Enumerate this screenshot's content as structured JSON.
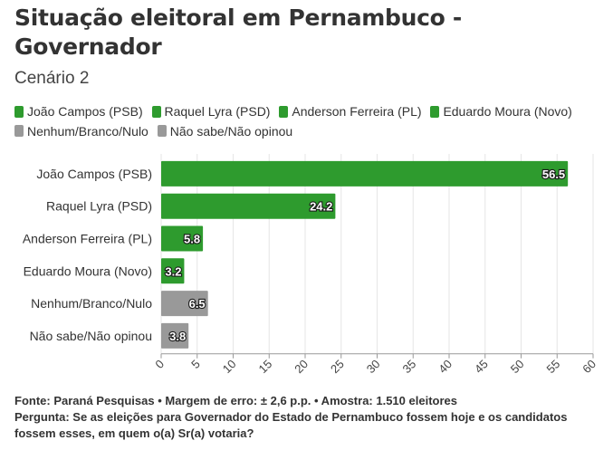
{
  "header": {
    "title": "Situação eleitoral em Pernambuco - Governador",
    "subtitle": "Cenário 2"
  },
  "legend": [
    {
      "label": "João Campos (PSB)",
      "color": "#2e9b2e"
    },
    {
      "label": "Raquel Lyra (PSD)",
      "color": "#2e9b2e"
    },
    {
      "label": "Anderson Ferreira (PL)",
      "color": "#2e9b2e"
    },
    {
      "label": "Eduardo Moura (Novo)",
      "color": "#2e9b2e"
    },
    {
      "label": "Nenhum/Branco/Nulo",
      "color": "#999999"
    },
    {
      "label": "Não sabe/Não opinou",
      "color": "#999999"
    }
  ],
  "chart_data": {
    "type": "bar",
    "orientation": "horizontal",
    "categories": [
      "João Campos (PSB)",
      "Raquel Lyra (PSD)",
      "Anderson Ferreira (PL)",
      "Eduardo Moura (Novo)",
      "Nenhum/Branco/Nulo",
      "Não sabe/Não opinou"
    ],
    "values": [
      56.5,
      24.2,
      5.8,
      3.2,
      6.5,
      3.8
    ],
    "value_labels": [
      "56.5",
      "24.2",
      "5.8",
      "3.2",
      "6.5",
      "3.8"
    ],
    "colors": [
      "#2e9b2e",
      "#2e9b2e",
      "#2e9b2e",
      "#2e9b2e",
      "#999999",
      "#999999"
    ],
    "xlim": [
      0,
      60
    ],
    "xticks": [
      "0",
      "5",
      "10",
      "15",
      "20",
      "25",
      "30",
      "35",
      "40",
      "45",
      "50",
      "55",
      "60"
    ],
    "grid": true
  },
  "footer": {
    "source": "Fonte: Paraná Pesquisas • Margem de erro: ± 2,6 p.p. • Amostra: 1.510 eleitores",
    "question": "Pergunta: Se as eleições para Governador do Estado de Pernambuco fossem hoje e os candidatos fossem esses, em quem o(a) Sr(a) votaria?"
  }
}
